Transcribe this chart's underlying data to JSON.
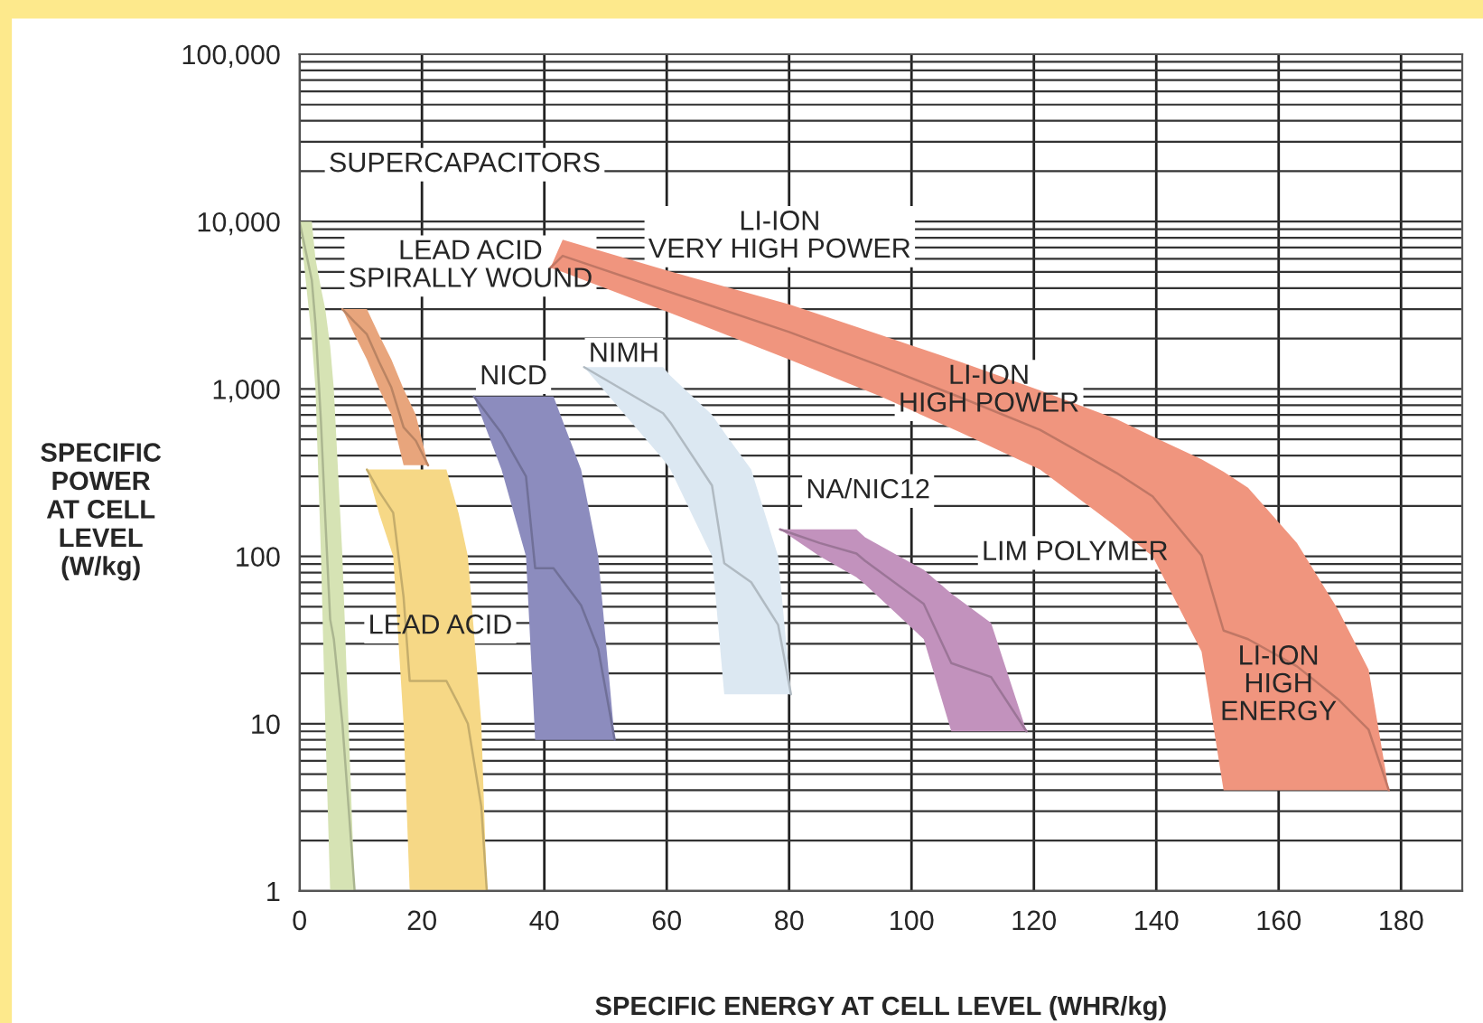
{
  "chart_data": {
    "type": "line",
    "xlabel": "SPECIFIC ENERGY AT CELL LEVEL (WHR/kg)",
    "ylabel": "SPECIFIC\nPOWER\nAT CELL\nLEVEL\n(W/kg)",
    "log": "y",
    "grid": true,
    "xlim": [
      0,
      190
    ],
    "xticks": [
      0,
      20,
      40,
      60,
      80,
      100,
      120,
      140,
      160,
      180
    ],
    "ylim": [
      1,
      100000
    ],
    "yticks": [
      1,
      10,
      100,
      {
        "value": 1000,
        "label": "1,000"
      },
      {
        "value": 10000,
        "label": "10,000"
      },
      {
        "value": 100000,
        "label": "100,000"
      }
    ],
    "series": [
      {
        "color": "#abb690",
        "x": [
          0,
          2,
          2.6,
          3.5,
          4.2,
          5,
          5.6,
          7,
          8,
          9
        ],
        "values": [
          10000,
          4470,
          2450,
          630,
          170,
          42,
          32,
          10,
          3.2,
          1
        ],
        "upper": [
          10000,
          10000,
          6000,
          4000,
          3000,
          1800,
          1000,
          100,
          10,
          1
        ],
        "lower": [
          10000,
          2000,
          1000,
          100,
          10,
          1,
          1,
          1,
          1,
          1
        ]
      },
      {
        "color": "#ba8463",
        "x": [
          7,
          9,
          11,
          13,
          15,
          17,
          19,
          21
        ],
        "values": [
          3000,
          2510,
          2120,
          1450,
          1020,
          590,
          490,
          350
        ],
        "upper": [
          3000,
          3000,
          3000,
          2100,
          1500,
          1000,
          700,
          350
        ],
        "lower": [
          3000,
          2100,
          1500,
          1000,
          700,
          350,
          350,
          350
        ]
      },
      {
        "color": "#c5ad6b",
        "x": [
          11,
          13,
          15.3,
          17,
          18,
          24,
          26,
          27.5,
          29.7,
          30.6
        ],
        "values": [
          330,
          244,
          182,
          57,
          18,
          18,
          13,
          10,
          3.2,
          1
        ],
        "upper": [
          330,
          330,
          330,
          330,
          330,
          330,
          180,
          100,
          10,
          1
        ],
        "lower": [
          330,
          180,
          100,
          10,
          1,
          1,
          1,
          1,
          1,
          1
        ]
      },
      {
        "color": "#707098",
        "x": [
          28.5,
          33,
          37,
          38.5,
          41.5,
          46,
          48.8,
          51.5
        ],
        "values": [
          900,
          545,
          300,
          85,
          85,
          51,
          28,
          8
        ],
        "upper": [
          900,
          900,
          900,
          900,
          900,
          330,
          100,
          8
        ],
        "lower": [
          900,
          330,
          100,
          8,
          8,
          8,
          8,
          8
        ]
      },
      {
        "color": "#b0bac2",
        "x": [
          46.5,
          59.4,
          60.6,
          67.4,
          69.4,
          73.8,
          78.2,
          80.3
        ],
        "values": [
          1350,
          716,
          629,
          265,
          91,
          70,
          39,
          15
        ],
        "upper": [
          1350,
          1350,
          1200,
          700,
          550,
          330,
          100,
          15
        ],
        "lower": [
          1350,
          380,
          330,
          100,
          15,
          15,
          15,
          15
        ]
      },
      {
        "color": "#9b7597",
        "x": [
          78.5,
          85,
          91,
          92.4,
          102,
          106.5,
          113,
          118.8
        ],
        "values": [
          145,
          120,
          104,
          94,
          52,
          23,
          19,
          9
        ],
        "upper": [
          145,
          145,
          145,
          130,
          83,
          60,
          40,
          9
        ],
        "lower": [
          145,
          100,
          75,
          68,
          32,
          9,
          9,
          9
        ]
      },
      {
        "color": "#c07765",
        "x": [
          41,
          43,
          60,
          80,
          95,
          108,
          121,
          133.5,
          139.4,
          147.4,
          151,
          155,
          163,
          169.7,
          174.7,
          178
        ],
        "values": [
          5300,
          6240,
          3850,
          2190,
          1370,
          890,
          570,
          315,
          228,
          101,
          36,
          32,
          22,
          14,
          9.2,
          4
        ],
        "upper": [
          5300,
          7800,
          5100,
          3200,
          2100,
          1450,
          980,
          660,
          520,
          380,
          320,
          257,
          120,
          48,
          21,
          4
        ],
        "lower": [
          5300,
          5000,
          2900,
          1500,
          900,
          550,
          330,
          150,
          100,
          27,
          4,
          4,
          4,
          4,
          4,
          4
        ]
      }
    ],
    "annotations": [
      "SUPERCAPACITORS",
      "LEAD ACID\nSPIRALLY WOUND",
      "LI-ION\nVERY HIGH POWER",
      "NICD",
      "NIMH",
      "LI-ION\nHIGH POWER",
      "NA/NIC12",
      "LIM POLYMER",
      "LEAD ACID",
      "LI-ION\nHIGH\nENERGY"
    ]
  }
}
